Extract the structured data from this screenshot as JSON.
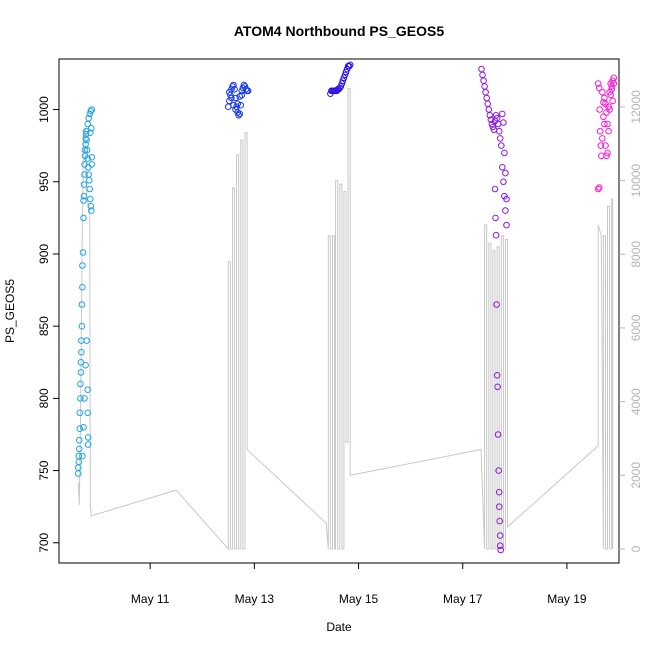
{
  "chart_data": {
    "type": "scatter",
    "title": "ATOM4 Northbound PS_GEOS5",
    "xlabel": "Date",
    "ylabel": "PS_GEOS5",
    "xlim": [
      9.25,
      20.0
    ],
    "ylim": [
      686,
      1035
    ],
    "y2lim": [
      -380,
      13300
    ],
    "x_ticks": [
      {
        "value": 11,
        "label": "May 11"
      },
      {
        "value": 13,
        "label": "May 13"
      },
      {
        "value": 15,
        "label": "May 15"
      },
      {
        "value": 17,
        "label": "May 17"
      },
      {
        "value": 19,
        "label": "May 19"
      }
    ],
    "y_ticks": [
      700,
      750,
      800,
      850,
      900,
      950,
      1000
    ],
    "y2_ticks": [
      0,
      2000,
      4000,
      6000,
      8000,
      10000,
      12000
    ],
    "grid": false,
    "altitude_line": {
      "name": "",
      "color": "#c8c8c8",
      "points": [
        [
          9.62,
          1800
        ],
        [
          9.64,
          1200
        ],
        [
          9.66,
          3200
        ],
        [
          9.68,
          6000
        ],
        [
          9.7,
          9000
        ],
        [
          9.72,
          10800
        ],
        [
          9.74,
          11400
        ],
        [
          9.76,
          11400
        ],
        [
          9.78,
          9500
        ],
        [
          9.8,
          9400
        ],
        [
          9.82,
          9300
        ],
        [
          9.84,
          9200
        ],
        [
          9.85,
          1200
        ],
        [
          9.87,
          900
        ],
        [
          11.5,
          1600
        ],
        [
          12.5,
          0
        ],
        [
          12.5,
          7800
        ],
        [
          12.54,
          7800
        ],
        [
          12.54,
          0
        ],
        [
          12.58,
          0
        ],
        [
          12.58,
          9800
        ],
        [
          12.62,
          9800
        ],
        [
          12.62,
          0
        ],
        [
          12.66,
          0
        ],
        [
          12.66,
          10700
        ],
        [
          12.7,
          10700
        ],
        [
          12.7,
          0
        ],
        [
          12.74,
          0
        ],
        [
          12.74,
          11100
        ],
        [
          12.78,
          11100
        ],
        [
          12.78,
          0
        ],
        [
          12.82,
          0
        ],
        [
          12.82,
          11300
        ],
        [
          12.86,
          11300
        ],
        [
          12.86,
          2700
        ],
        [
          14.38,
          700
        ],
        [
          14.42,
          0
        ],
        [
          14.42,
          8500
        ],
        [
          14.46,
          8500
        ],
        [
          14.46,
          0
        ],
        [
          14.5,
          0
        ],
        [
          14.5,
          8500
        ],
        [
          14.54,
          8500
        ],
        [
          14.54,
          0
        ],
        [
          14.56,
          0
        ],
        [
          14.56,
          10000
        ],
        [
          14.6,
          10000
        ],
        [
          14.6,
          0
        ],
        [
          14.64,
          0
        ],
        [
          14.64,
          9900
        ],
        [
          14.68,
          9900
        ],
        [
          14.68,
          0
        ],
        [
          14.72,
          0
        ],
        [
          14.72,
          9700
        ],
        [
          14.76,
          9700
        ],
        [
          14.76,
          2900
        ],
        [
          14.8,
          2900
        ],
        [
          14.8,
          12500
        ],
        [
          14.84,
          12500
        ],
        [
          14.84,
          2000
        ],
        [
          17.35,
          2700
        ],
        [
          17.42,
          0
        ],
        [
          17.42,
          8800
        ],
        [
          17.46,
          8800
        ],
        [
          17.46,
          0
        ],
        [
          17.5,
          0
        ],
        [
          17.5,
          8300
        ],
        [
          17.54,
          8300
        ],
        [
          17.54,
          0
        ],
        [
          17.58,
          0
        ],
        [
          17.58,
          8100
        ],
        [
          17.62,
          8100
        ],
        [
          17.62,
          0
        ],
        [
          17.66,
          0
        ],
        [
          17.66,
          8200
        ],
        [
          17.7,
          8200
        ],
        [
          17.7,
          0
        ],
        [
          17.74,
          0
        ],
        [
          17.74,
          8500
        ],
        [
          17.78,
          8500
        ],
        [
          17.78,
          0
        ],
        [
          17.82,
          0
        ],
        [
          17.82,
          8400
        ],
        [
          17.86,
          8400
        ],
        [
          17.86,
          600
        ],
        [
          19.6,
          2800
        ],
        [
          19.6,
          8800
        ],
        [
          19.66,
          8500
        ],
        [
          19.7,
          0
        ],
        [
          19.7,
          8500
        ],
        [
          19.74,
          8500
        ],
        [
          19.74,
          0
        ],
        [
          19.78,
          0
        ],
        [
          19.78,
          9300
        ],
        [
          19.82,
          9300
        ],
        [
          19.82,
          0
        ],
        [
          19.86,
          0
        ],
        [
          19.86,
          9500
        ],
        [
          19.88,
          9500
        ],
        [
          19.88,
          0
        ]
      ]
    },
    "series": [
      {
        "name": "",
        "color": "#1fa2ea",
        "points": [
          [
            9.62,
            748
          ],
          [
            9.62,
            752
          ],
          [
            9.63,
            756
          ],
          [
            9.63,
            760
          ],
          [
            9.64,
            765
          ],
          [
            9.64,
            771
          ],
          [
            9.65,
            779
          ],
          [
            9.65,
            790
          ],
          [
            9.66,
            800
          ],
          [
            9.66,
            810
          ],
          [
            9.67,
            818
          ],
          [
            9.67,
            825
          ],
          [
            9.68,
            832
          ],
          [
            9.68,
            840
          ],
          [
            9.69,
            850
          ],
          [
            9.69,
            865
          ],
          [
            9.7,
            877
          ],
          [
            9.7,
            892
          ],
          [
            9.71,
            901
          ],
          [
            9.72,
            925
          ],
          [
            9.72,
            937
          ],
          [
            9.73,
            940
          ],
          [
            9.73,
            948
          ],
          [
            9.74,
            955
          ],
          [
            9.74,
            962
          ],
          [
            9.75,
            968
          ],
          [
            9.75,
            972
          ],
          [
            9.76,
            976
          ],
          [
            9.76,
            980
          ],
          [
            9.77,
            983
          ],
          [
            9.77,
            985
          ],
          [
            9.78,
            979
          ],
          [
            9.79,
            972
          ],
          [
            9.8,
            966
          ],
          [
            9.81,
            960
          ],
          [
            9.82,
            955
          ],
          [
            9.83,
            951
          ],
          [
            9.84,
            945
          ],
          [
            9.85,
            938
          ],
          [
            9.86,
            933
          ],
          [
            9.87,
            930
          ],
          [
            9.7,
            760
          ],
          [
            9.72,
            780
          ],
          [
            9.74,
            800
          ],
          [
            9.76,
            823
          ],
          [
            9.78,
            840
          ],
          [
            9.8,
            806
          ],
          [
            9.8,
            790
          ],
          [
            9.81,
            773
          ],
          [
            9.81,
            768
          ],
          [
            9.8,
            990
          ],
          [
            9.82,
            994
          ],
          [
            9.84,
            997
          ],
          [
            9.86,
            999
          ],
          [
            9.88,
            1000
          ],
          [
            9.85,
            984
          ],
          [
            9.87,
            987
          ],
          [
            9.88,
            962
          ],
          [
            9.88,
            967
          ]
        ]
      },
      {
        "name": "",
        "color": "#1536ea",
        "points": [
          [
            12.5,
            1002
          ],
          [
            12.52,
            1006
          ],
          [
            12.54,
            1010
          ],
          [
            12.56,
            1014
          ],
          [
            12.58,
            1016
          ],
          [
            12.6,
            1017
          ],
          [
            12.62,
            1014
          ],
          [
            12.64,
            1008
          ],
          [
            12.66,
            1002
          ],
          [
            12.68,
            998
          ],
          [
            12.7,
            996
          ],
          [
            12.72,
            997
          ],
          [
            12.74,
            1003
          ],
          [
            12.76,
            1010
          ],
          [
            12.78,
            1015
          ],
          [
            12.8,
            1017
          ],
          [
            12.82,
            1016
          ],
          [
            12.84,
            1014
          ],
          [
            12.86,
            1013
          ],
          [
            12.88,
            1013
          ],
          [
            12.52,
            1012
          ],
          [
            12.56,
            1008
          ],
          [
            12.6,
            1003
          ],
          [
            12.64,
            1000
          ],
          [
            12.68,
            1004
          ],
          [
            12.72,
            1009
          ],
          [
            12.76,
            1013
          ]
        ]
      },
      {
        "name": "",
        "color": "#2c0fe4",
        "points": [
          [
            14.46,
            1011
          ],
          [
            14.48,
            1013
          ],
          [
            14.5,
            1013
          ],
          [
            14.52,
            1013
          ],
          [
            14.54,
            1013
          ],
          [
            14.56,
            1013
          ],
          [
            14.58,
            1013
          ],
          [
            14.6,
            1014
          ],
          [
            14.62,
            1014
          ],
          [
            14.64,
            1015
          ],
          [
            14.66,
            1016
          ],
          [
            14.68,
            1018
          ],
          [
            14.7,
            1020
          ],
          [
            14.72,
            1022
          ],
          [
            14.74,
            1024
          ],
          [
            14.76,
            1026
          ],
          [
            14.78,
            1028
          ],
          [
            14.8,
            1030
          ],
          [
            14.82,
            1030
          ],
          [
            14.84,
            1031
          ]
        ]
      },
      {
        "name": "",
        "color": "#8a1ae0",
        "points": [
          [
            17.36,
            1028
          ],
          [
            17.38,
            1024
          ],
          [
            17.4,
            1020
          ],
          [
            17.42,
            1016
          ],
          [
            17.44,
            1012
          ],
          [
            17.46,
            1008
          ],
          [
            17.48,
            1004
          ],
          [
            17.5,
            1000
          ],
          [
            17.52,
            996
          ],
          [
            17.54,
            993
          ],
          [
            17.56,
            990
          ],
          [
            17.58,
            988
          ],
          [
            17.6,
            986
          ],
          [
            17.62,
            992
          ],
          [
            17.64,
            996
          ],
          [
            17.66,
            994
          ],
          [
            17.68,
            990
          ],
          [
            17.7,
            985
          ],
          [
            17.72,
            980
          ],
          [
            17.74,
            975
          ],
          [
            17.76,
            960
          ],
          [
            17.78,
            950
          ],
          [
            17.8,
            940
          ],
          [
            17.82,
            930
          ],
          [
            17.84,
            920
          ],
          [
            17.62,
            945
          ],
          [
            17.63,
            925
          ],
          [
            17.64,
            913
          ],
          [
            17.65,
            865
          ],
          [
            17.66,
            816
          ],
          [
            17.67,
            808
          ],
          [
            17.68,
            775
          ],
          [
            17.69,
            750
          ],
          [
            17.7,
            735
          ],
          [
            17.7,
            725
          ],
          [
            17.71,
            715
          ],
          [
            17.72,
            705
          ],
          [
            17.72,
            698
          ],
          [
            17.73,
            695
          ],
          [
            17.76,
            997
          ],
          [
            17.78,
            991
          ],
          [
            17.8,
            970
          ],
          [
            17.82,
            956
          ],
          [
            17.84,
            938
          ]
        ]
      },
      {
        "name": "",
        "color": "#ff18d4",
        "points": [
          [
            19.6,
            945
          ],
          [
            19.62,
            946
          ],
          [
            19.6,
            1018
          ],
          [
            19.62,
            1015
          ],
          [
            19.63,
            1000
          ],
          [
            19.64,
            985
          ],
          [
            19.65,
            975
          ],
          [
            19.66,
            968
          ],
          [
            19.68,
            980
          ],
          [
            19.7,
            995
          ],
          [
            19.72,
            1008
          ],
          [
            19.74,
            1004
          ],
          [
            19.76,
            998
          ],
          [
            19.78,
            990
          ],
          [
            19.8,
            985
          ],
          [
            19.82,
            1000
          ],
          [
            19.84,
            1010
          ],
          [
            19.86,
            1016
          ],
          [
            19.88,
            1020
          ],
          [
            19.9,
            1022
          ],
          [
            19.68,
            1012
          ],
          [
            19.7,
            1005
          ],
          [
            19.72,
            990
          ],
          [
            19.74,
            975
          ],
          [
            19.76,
            968
          ],
          [
            19.78,
            970
          ],
          [
            19.8,
            1002
          ],
          [
            19.82,
            1012
          ],
          [
            19.84,
            1018
          ],
          [
            19.86,
            1014
          ],
          [
            19.88,
            1006
          ],
          [
            19.9,
            1018
          ]
        ]
      }
    ]
  }
}
